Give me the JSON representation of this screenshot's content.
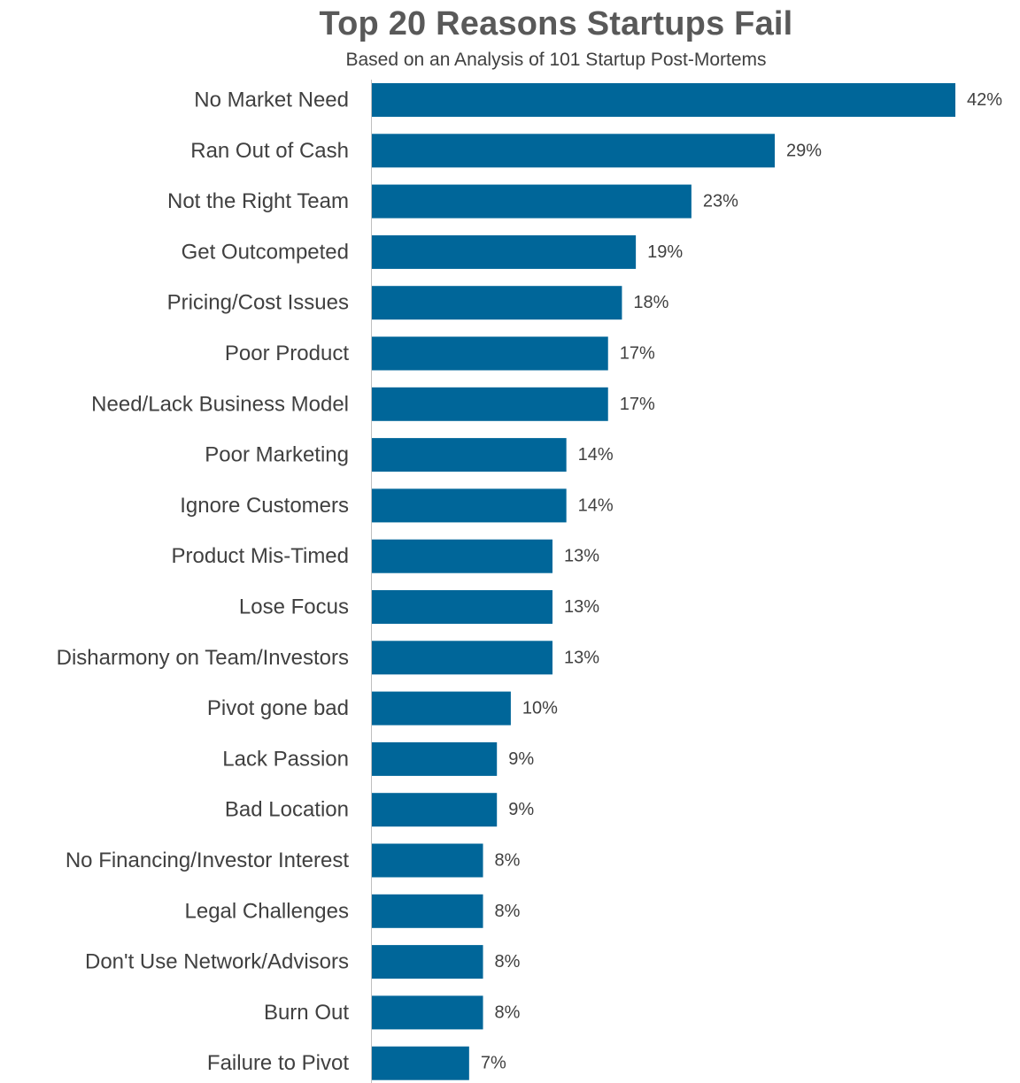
{
  "chart_data": {
    "type": "bar",
    "orientation": "horizontal",
    "title": "Top 20 Reasons Startups Fail",
    "subtitle": "Based on an Analysis of 101 Startup Post-Mortems",
    "xlabel": "",
    "ylabel": "",
    "xlim": [
      0,
      42
    ],
    "grid": false,
    "legend": "none",
    "bar_color": "#006699",
    "categories": [
      "No Market Need",
      "Ran Out of Cash",
      "Not the Right Team",
      "Get Outcompeted",
      "Pricing/Cost Issues",
      "Poor Product",
      "Need/Lack Business Model",
      "Poor Marketing",
      "Ignore Customers",
      "Product Mis-Timed",
      "Lose Focus",
      "Disharmony on Team/Investors",
      "Pivot gone bad",
      "Lack Passion",
      "Bad Location",
      "No Financing/Investor Interest",
      "Legal Challenges",
      "Don't Use Network/Advisors",
      "Burn Out",
      "Failure to Pivot"
    ],
    "values": [
      42,
      29,
      23,
      19,
      18,
      17,
      17,
      14,
      14,
      13,
      13,
      13,
      10,
      9,
      9,
      8,
      8,
      8,
      8,
      7
    ],
    "data_labels": [
      "42%",
      "29%",
      "23%",
      "19%",
      "18%",
      "17%",
      "17%",
      "14%",
      "14%",
      "13%",
      "13%",
      "13%",
      "10%",
      "9%",
      "9%",
      "8%",
      "8%",
      "8%",
      "8%",
      "7%"
    ]
  }
}
